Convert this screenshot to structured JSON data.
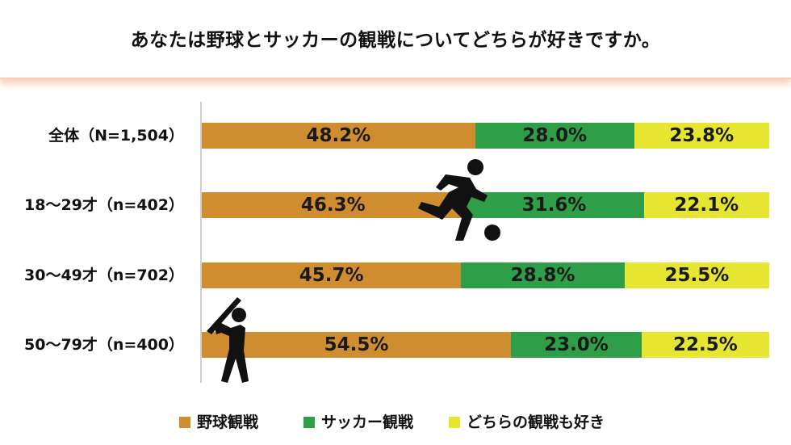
{
  "title": "あなたは野球とサッカーの観戦についてどちらが好きですか。",
  "colors": {
    "baseball": "#d08d30",
    "soccer": "#2f9e48",
    "both": "#e5e532",
    "axis": "#cfcfcf"
  },
  "icons": [
    "soccer-player-icon",
    "baseball-batter-icon"
  ],
  "chart_data": {
    "type": "bar",
    "orientation": "horizontal",
    "stacked": true,
    "unit": "%",
    "xlim": [
      0,
      100
    ],
    "categories": [
      "全体（N=1,504）",
      "18～29才（n=402）",
      "30～49才（n=702）",
      "50～79才（n=400）"
    ],
    "series": [
      {
        "name": "野球観戦",
        "values": [
          48.2,
          46.3,
          45.7,
          54.5
        ],
        "labels": [
          "48.2%",
          "46.3%",
          "45.7%",
          "54.5%"
        ]
      },
      {
        "name": "サッカー観戦",
        "values": [
          28.0,
          31.6,
          28.8,
          23.0
        ],
        "labels": [
          "28.0%",
          "31.6%",
          "28.8%",
          "23.0%"
        ]
      },
      {
        "name": "どちらの観戦も好き",
        "values": [
          23.8,
          22.1,
          25.5,
          22.5
        ],
        "labels": [
          "23.8%",
          "22.1%",
          "25.5%",
          "22.5%"
        ]
      }
    ],
    "legend_position": "bottom",
    "grid": false
  }
}
